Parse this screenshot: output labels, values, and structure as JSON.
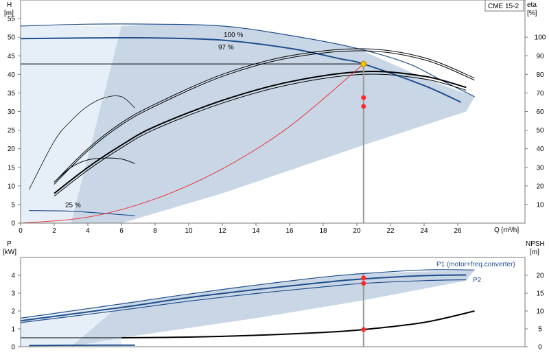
{
  "colors": {
    "band": "#c8d6e5",
    "band_light": "#e6eef7",
    "blue_curve": "#1f4e8c",
    "black_curve": "#000000",
    "system_curve": "#ee3333",
    "duty_point": "#ff2a2a",
    "op_point_fill": "#f5c400"
  },
  "chart_data": [
    {
      "type": "line",
      "title": "CME 15-2",
      "xlabel": "Q [m³/h]",
      "ylabel": "H [m]",
      "ylabel_top": "H",
      "ylabel_unit": "[m]",
      "y2label": "eta [%]",
      "y2label_top": "eta",
      "y2label_unit": "[%]",
      "xlim": [
        0,
        30
      ],
      "ylim": [
        0,
        60
      ],
      "y2lim": [
        0,
        120
      ],
      "x_ticks": [
        0,
        2,
        4,
        6,
        8,
        10,
        12,
        14,
        16,
        18,
        20,
        22,
        24,
        26
      ],
      "y_ticks": [
        0,
        5,
        10,
        15,
        20,
        25,
        30,
        35,
        40,
        45,
        50,
        55
      ],
      "y2_ticks": [
        10,
        20,
        30,
        40,
        50,
        60,
        70,
        80,
        90,
        100
      ],
      "x_axis_label": "Q [m³/h]",
      "series": [
        {
          "name": "100 %",
          "role": "head_max",
          "x": [
            0,
            4,
            8,
            12,
            16,
            20,
            23,
            25,
            27
          ],
          "y": [
            53,
            53.5,
            53.5,
            53,
            50.5,
            47,
            43,
            38.5,
            34
          ]
        },
        {
          "name": "97 %",
          "role": "head_duty",
          "x": [
            0,
            4,
            8,
            12,
            16,
            19,
            20.4,
            24,
            26.2
          ],
          "y": [
            49.6,
            49.8,
            49.8,
            49.2,
            47,
            44.2,
            42.8,
            37,
            32.5
          ]
        },
        {
          "role": "head_25",
          "x": [
            0.5,
            3,
            5,
            6.8
          ],
          "y": [
            3.4,
            3.2,
            2.6,
            2.0
          ]
        },
        {
          "role": "eta_max",
          "x": [
            2,
            4,
            6,
            8,
            12,
            16,
            20.4,
            24,
            27
          ],
          "y": [
            22,
            40,
            54,
            64,
            80,
            90,
            93.8,
            89,
            78
          ]
        },
        {
          "role": "eta_duty",
          "x": [
            2,
            4,
            6,
            8,
            12,
            16,
            20.4,
            24,
            26.5
          ],
          "y": [
            16,
            30,
            42,
            52,
            66,
            76,
            81.5,
            79,
            73
          ]
        },
        {
          "role": "eta_25",
          "x": [
            2,
            3,
            4,
            5,
            6,
            6.8
          ],
          "y": [
            22,
            30,
            34,
            35,
            34.5,
            32
          ]
        },
        {
          "role": "eta_low",
          "x": [
            0.5,
            2,
            3,
            4,
            5,
            6,
            6.8
          ],
          "y": [
            18,
            44,
            55,
            63,
            67.5,
            68,
            62
          ]
        },
        {
          "role": "system_curve",
          "x": [
            0,
            4,
            8,
            12,
            16,
            20.4
          ],
          "y": [
            0,
            1.6,
            6.5,
            14.6,
            26,
            42.8
          ]
        }
      ],
      "op_point": {
        "x": 20.4,
        "y": 42.8
      },
      "duty_points_eta": [
        {
          "x": 20.4,
          "y": 67.5
        },
        {
          "x": 20.4,
          "y": 62.8
        }
      ],
      "annotations": [
        "100 %",
        "97 %",
        "25 %"
      ]
    },
    {
      "type": "line",
      "ylabel": "P [kW]",
      "ylabel_top": "P",
      "ylabel_unit": "[kW]",
      "y2label": "NPSH [m]",
      "y2label_top": "NPSH",
      "y2label_unit": "[m]",
      "xlim": [
        0,
        30
      ],
      "ylim": [
        0,
        5
      ],
      "y2lim": [
        0,
        25
      ],
      "y_ticks": [
        0,
        1,
        2,
        3,
        4
      ],
      "y2_ticks": [
        0,
        5,
        10,
        15,
        20
      ],
      "series": [
        {
          "name": "P1 (motor+freq.converter)",
          "role": "p1",
          "x": [
            0,
            6,
            10,
            14,
            18,
            20.4,
            24,
            27
          ],
          "y": [
            1.6,
            2.4,
            2.95,
            3.45,
            3.9,
            4.1,
            4.3,
            4.3
          ]
        },
        {
          "role": "p1_duty",
          "x": [
            0,
            6,
            10,
            14,
            18,
            20.4,
            24,
            26.5
          ],
          "y": [
            1.45,
            2.2,
            2.75,
            3.2,
            3.6,
            3.8,
            3.98,
            4.02
          ]
        },
        {
          "name": "P2",
          "role": "p2",
          "x": [
            0,
            6,
            10,
            14,
            18,
            20.4,
            24,
            26.5
          ],
          "y": [
            1.35,
            2.05,
            2.55,
            2.98,
            3.35,
            3.55,
            3.7,
            3.75
          ]
        },
        {
          "role": "npsh",
          "x": [
            6,
            10,
            14,
            18,
            20.4,
            24,
            27
          ],
          "y": [
            2.5,
            2.7,
            3.2,
            4.0,
            4.8,
            6.8,
            10.0
          ]
        },
        {
          "role": "p_low",
          "x": [
            0.5,
            3,
            6.8
          ],
          "y": [
            0.07,
            0.08,
            0.09
          ]
        }
      ],
      "duty_points": [
        {
          "x": 20.4,
          "y": 3.85
        },
        {
          "x": 20.4,
          "y": 3.55
        }
      ],
      "npsh_duty_point": {
        "x": 20.4,
        "y": 4.8
      },
      "annotations": [
        "P1 (motor+freq.converter)",
        "P2"
      ]
    }
  ]
}
